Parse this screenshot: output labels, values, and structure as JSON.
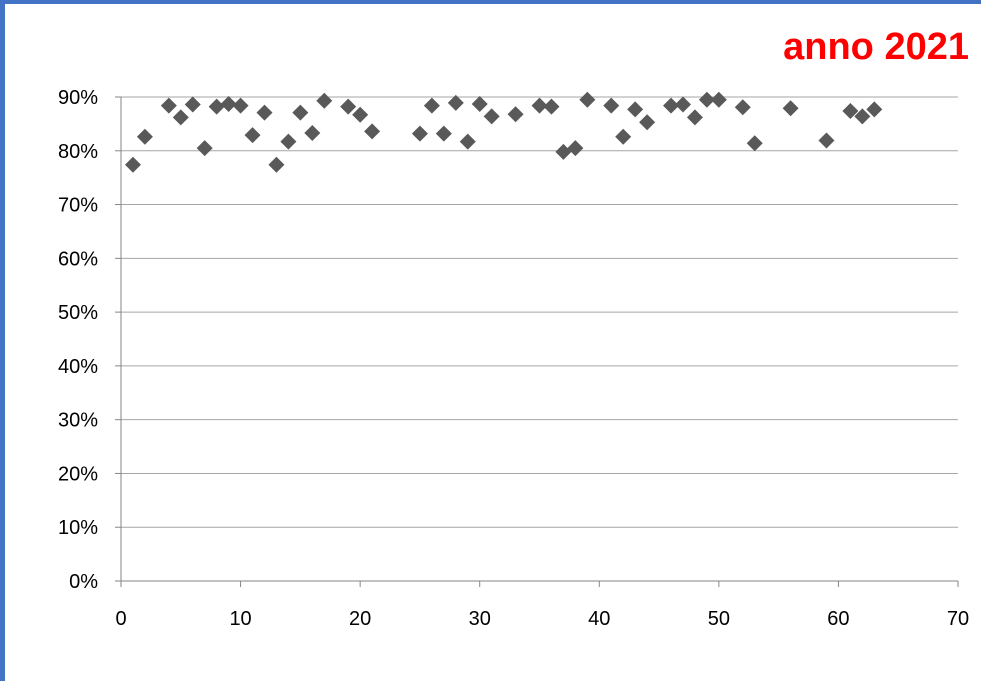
{
  "chart_data": {
    "type": "scatter",
    "title": "anno 2021",
    "xlabel": "",
    "ylabel": "",
    "xlim": [
      0,
      70
    ],
    "ylim": [
      0,
      0.9
    ],
    "x_ticks": [
      "0",
      "10",
      "20",
      "30",
      "40",
      "50",
      "60",
      "70"
    ],
    "x_tick_values": [
      0,
      10,
      20,
      30,
      40,
      50,
      60,
      70
    ],
    "y_ticks": [
      "0%",
      "10%",
      "20%",
      "30%",
      "40%",
      "50%",
      "60%",
      "70%",
      "80%",
      "90%"
    ],
    "y_tick_values": [
      0,
      0.1,
      0.2,
      0.3,
      0.4,
      0.5,
      0.6,
      0.7,
      0.8,
      0.9
    ],
    "grid": "horizontal",
    "legend": "none",
    "marker": "diamond",
    "marker_color": "#595959",
    "title_color": "#ff0000",
    "border_color": "#4472c4",
    "points": [
      {
        "x": 1,
        "y": 0.774
      },
      {
        "x": 2,
        "y": 0.826
      },
      {
        "x": 4,
        "y": 0.884
      },
      {
        "x": 5,
        "y": 0.862
      },
      {
        "x": 6,
        "y": 0.886
      },
      {
        "x": 7,
        "y": 0.805
      },
      {
        "x": 8,
        "y": 0.882
      },
      {
        "x": 9,
        "y": 0.887
      },
      {
        "x": 10,
        "y": 0.884
      },
      {
        "x": 11,
        "y": 0.829
      },
      {
        "x": 12,
        "y": 0.871
      },
      {
        "x": 13,
        "y": 0.774
      },
      {
        "x": 14,
        "y": 0.817
      },
      {
        "x": 15,
        "y": 0.871
      },
      {
        "x": 16,
        "y": 0.833
      },
      {
        "x": 17,
        "y": 0.893
      },
      {
        "x": 19,
        "y": 0.882
      },
      {
        "x": 20,
        "y": 0.867
      },
      {
        "x": 21,
        "y": 0.836
      },
      {
        "x": 25,
        "y": 0.832
      },
      {
        "x": 26,
        "y": 0.884
      },
      {
        "x": 27,
        "y": 0.832
      },
      {
        "x": 28,
        "y": 0.889
      },
      {
        "x": 29,
        "y": 0.817
      },
      {
        "x": 30,
        "y": 0.887
      },
      {
        "x": 31,
        "y": 0.864
      },
      {
        "x": 33,
        "y": 0.868
      },
      {
        "x": 35,
        "y": 0.884
      },
      {
        "x": 36,
        "y": 0.882
      },
      {
        "x": 37,
        "y": 0.798
      },
      {
        "x": 38,
        "y": 0.805
      },
      {
        "x": 39,
        "y": 0.895
      },
      {
        "x": 41,
        "y": 0.884
      },
      {
        "x": 42,
        "y": 0.826
      },
      {
        "x": 43,
        "y": 0.877
      },
      {
        "x": 44,
        "y": 0.853
      },
      {
        "x": 46,
        "y": 0.884
      },
      {
        "x": 47,
        "y": 0.886
      },
      {
        "x": 48,
        "y": 0.862
      },
      {
        "x": 49,
        "y": 0.895
      },
      {
        "x": 50,
        "y": 0.895
      },
      {
        "x": 52,
        "y": 0.881
      },
      {
        "x": 53,
        "y": 0.814
      },
      {
        "x": 56,
        "y": 0.879
      },
      {
        "x": 59,
        "y": 0.819
      },
      {
        "x": 61,
        "y": 0.874
      },
      {
        "x": 62,
        "y": 0.864
      },
      {
        "x": 63,
        "y": 0.877
      }
    ]
  }
}
